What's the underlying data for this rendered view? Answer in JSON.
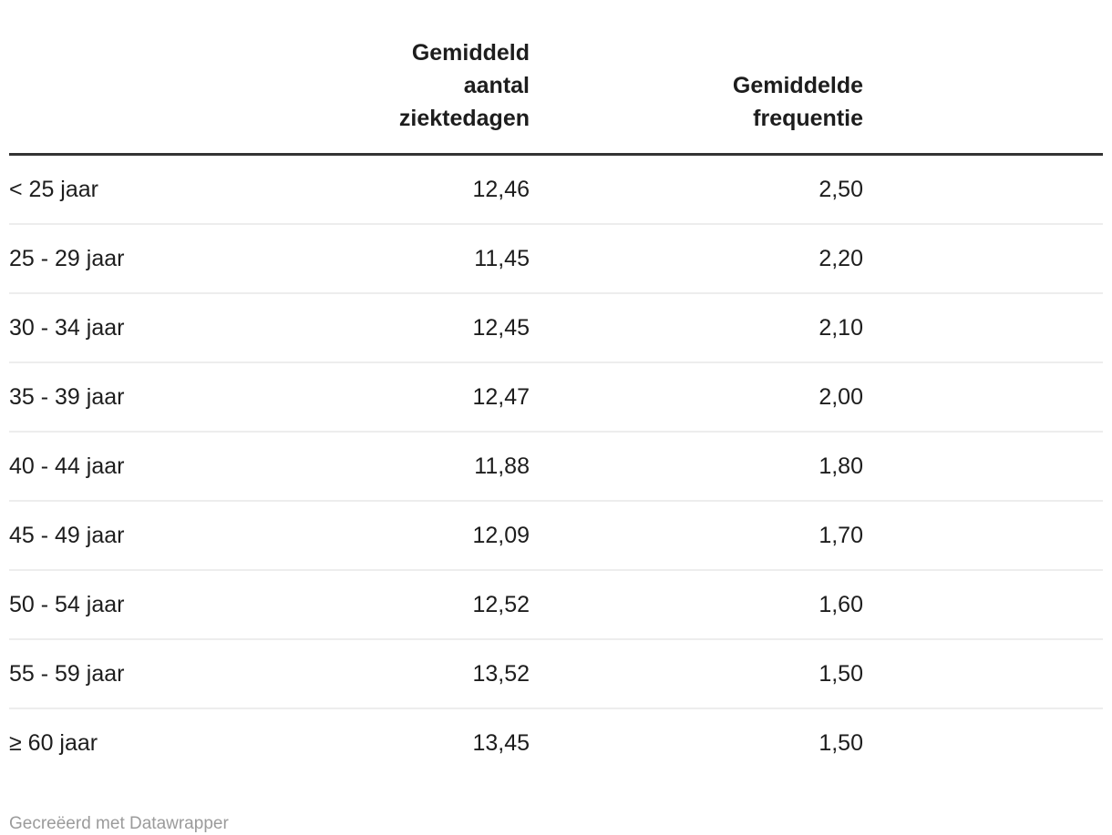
{
  "table": {
    "header": {
      "label": "",
      "ziektedagen_lines": [
        "Gemiddeld aantal",
        "ziektedagen"
      ],
      "frequentie_lines": [
        "Gemiddelde",
        "frequentie"
      ]
    },
    "rows": [
      {
        "label": "< 25 jaar",
        "ziektedagen": "12,46",
        "frequentie": "2,50"
      },
      {
        "label": "25 - 29 jaar",
        "ziektedagen": "11,45",
        "frequentie": "2,20"
      },
      {
        "label": "30 - 34 jaar",
        "ziektedagen": "12,45",
        "frequentie": "2,10"
      },
      {
        "label": "35 - 39 jaar",
        "ziektedagen": "12,47",
        "frequentie": "2,00"
      },
      {
        "label": "40 - 44 jaar",
        "ziektedagen": "11,88",
        "frequentie": "1,80"
      },
      {
        "label": "45 - 49 jaar",
        "ziektedagen": "12,09",
        "frequentie": "1,70"
      },
      {
        "label": "50 - 54 jaar",
        "ziektedagen": "12,52",
        "frequentie": "1,60"
      },
      {
        "label": "55 - 59 jaar",
        "ziektedagen": "13,52",
        "frequentie": "1,50"
      },
      {
        "label": "≥ 60 jaar",
        "ziektedagen": "13,45",
        "frequentie": "1,50"
      }
    ]
  },
  "footer": {
    "attribution": "Gecreëerd met Datawrapper"
  },
  "colors": {
    "text": "#1d1d1d",
    "header_rule": "#333333",
    "row_rule": "#ededed",
    "footer_text": "#9b9b9b"
  },
  "chart_data": {
    "type": "table",
    "categories": [
      "< 25 jaar",
      "25 - 29 jaar",
      "30 - 34 jaar",
      "35 - 39 jaar",
      "40 - 44 jaar",
      "45 - 49 jaar",
      "50 - 54 jaar",
      "55 - 59 jaar",
      "≥ 60 jaar"
    ],
    "series": [
      {
        "name": "Gemiddeld aantal ziektedagen",
        "values": [
          12.46,
          11.45,
          12.45,
          12.47,
          11.88,
          12.09,
          12.52,
          13.52,
          13.45
        ]
      },
      {
        "name": "Gemiddelde frequentie",
        "values": [
          2.5,
          2.2,
          2.1,
          2.0,
          1.8,
          1.7,
          1.6,
          1.5,
          1.5
        ]
      }
    ],
    "title": "",
    "xlabel": "",
    "ylabel": "",
    "legend_position": "none",
    "grid": false,
    "attribution": "Gecreëerd met Datawrapper"
  }
}
